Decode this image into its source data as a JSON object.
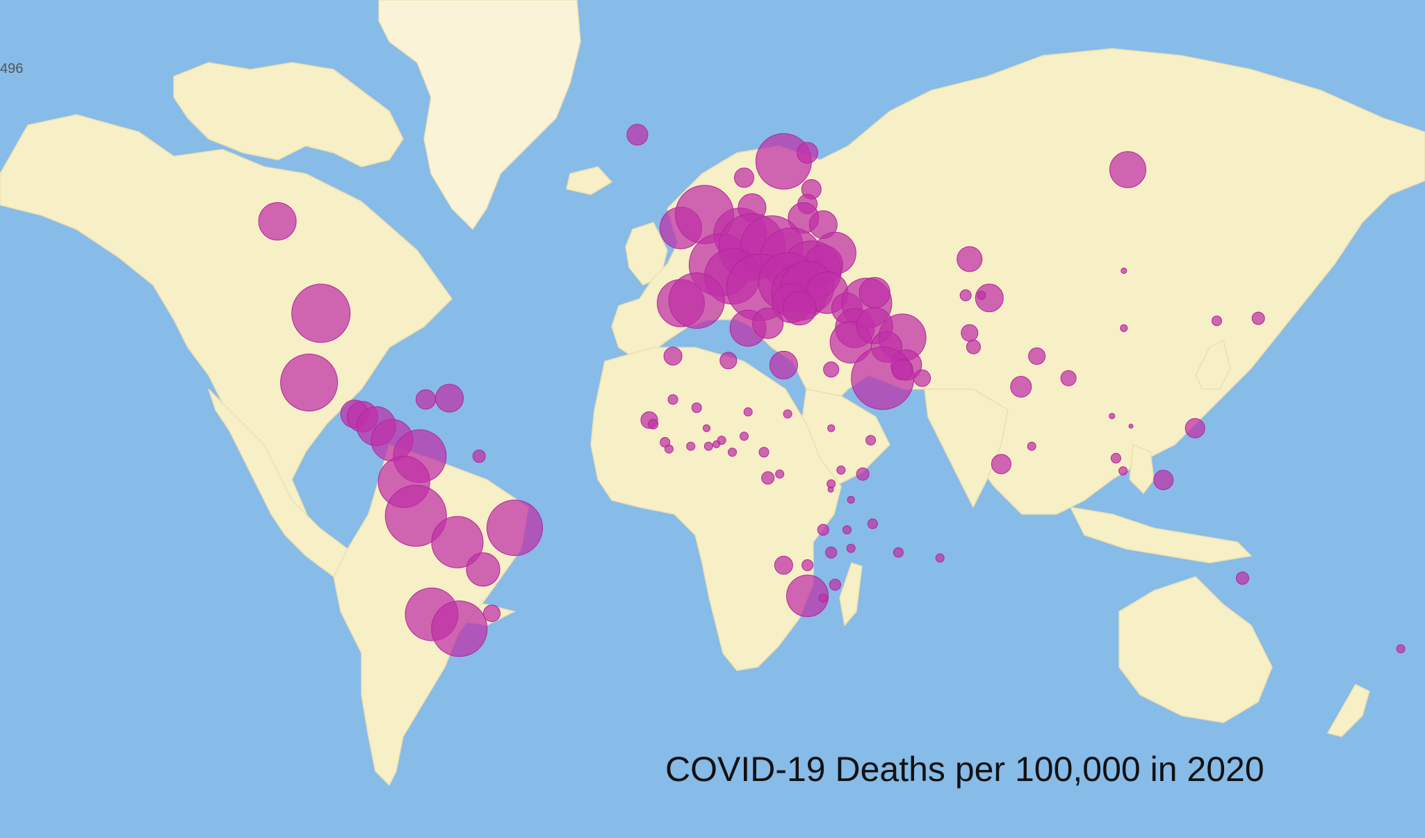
{
  "map": {
    "title": "COVID-19 Deaths per 100,000 in 2020",
    "corner_label": "496",
    "colors": {
      "ocean": "#87bbe8",
      "land": "#f7efc6",
      "bubble": "#bf2fa8"
    },
    "projection": "mercator",
    "bubbles": [
      {
        "lon": -110,
        "lat": 54,
        "r": 27
      },
      {
        "lon": -99,
        "lat": 38,
        "r": 42
      },
      {
        "lon": -102,
        "lat": 23,
        "r": 41
      },
      {
        "lon": -90.5,
        "lat": 15.5,
        "r": 20
      },
      {
        "lon": -88.5,
        "lat": 14.8,
        "r": 22
      },
      {
        "lon": -85,
        "lat": 12.5,
        "r": 28
      },
      {
        "lon": -81,
        "lat": 9,
        "r": 30
      },
      {
        "lon": -74,
        "lat": 5,
        "r": 38
      },
      {
        "lon": -78,
        "lat": -1.5,
        "r": 37
      },
      {
        "lon": -75,
        "lat": -10,
        "r": 44
      },
      {
        "lon": -64.5,
        "lat": -16.5,
        "r": 37
      },
      {
        "lon": -50,
        "lat": -13,
        "r": 40
      },
      {
        "lon": -58,
        "lat": -23,
        "r": 24
      },
      {
        "lon": -55.8,
        "lat": -32.8,
        "r": 12
      },
      {
        "lon": -71,
        "lat": -33,
        "r": 38
      },
      {
        "lon": -64,
        "lat": -36,
        "r": 40
      },
      {
        "lon": -72.5,
        "lat": 19,
        "r": 14
      },
      {
        "lon": -66.5,
        "lat": 19.3,
        "r": 20
      },
      {
        "lon": -59,
        "lat": 5,
        "r": 9
      },
      {
        "lon": -19,
        "lat": 65,
        "r": 15
      },
      {
        "lon": -8,
        "lat": 53,
        "r": 30
      },
      {
        "lon": -2,
        "lat": 55,
        "r": 42
      },
      {
        "lon": 7,
        "lat": 52,
        "r": 38
      },
      {
        "lon": 8,
        "lat": 60,
        "r": 14
      },
      {
        "lon": 10,
        "lat": 56,
        "r": 20
      },
      {
        "lon": 18,
        "lat": 62,
        "r": 40
      },
      {
        "lon": 24,
        "lat": 63,
        "r": 15
      },
      {
        "lon": 25,
        "lat": 58.5,
        "r": 14
      },
      {
        "lon": 24,
        "lat": 56.5,
        "r": 14
      },
      {
        "lon": 23,
        "lat": 54.5,
        "r": 22
      },
      {
        "lon": 28,
        "lat": 53.5,
        "r": 20
      },
      {
        "lon": 31,
        "lat": 49,
        "r": 30
      },
      {
        "lon": 2,
        "lat": 47,
        "r": 45
      },
      {
        "lon": 10,
        "lat": 50,
        "r": 48
      },
      {
        "lon": 15,
        "lat": 50,
        "r": 45
      },
      {
        "lon": 20,
        "lat": 48,
        "r": 45
      },
      {
        "lon": 25,
        "lat": 46,
        "r": 43
      },
      {
        "lon": 28,
        "lat": 47,
        "r": 28
      },
      {
        "lon": 5,
        "lat": 45,
        "r": 40
      },
      {
        "lon": 12,
        "lat": 43,
        "r": 48
      },
      {
        "lon": 19,
        "lat": 44,
        "r": 42
      },
      {
        "lon": 22,
        "lat": 42,
        "r": 40
      },
      {
        "lon": 24,
        "lat": 43,
        "r": 38
      },
      {
        "lon": 29,
        "lat": 42,
        "r": 30
      },
      {
        "lon": 20,
        "lat": 40,
        "r": 28
      },
      {
        "lon": 22,
        "lat": 39,
        "r": 24
      },
      {
        "lon": -8,
        "lat": 40,
        "r": 34
      },
      {
        "lon": -4,
        "lat": 40.5,
        "r": 40
      },
      {
        "lon": 9,
        "lat": 35,
        "r": 26
      },
      {
        "lon": 14,
        "lat": 36,
        "r": 22
      },
      {
        "lon": 34,
        "lat": 39,
        "r": 22
      },
      {
        "lon": 39,
        "lat": 40,
        "r": 36
      },
      {
        "lon": 41,
        "lat": 42,
        "r": 22
      },
      {
        "lon": 36,
        "lat": 35,
        "r": 28
      },
      {
        "lon": 35,
        "lat": 32,
        "r": 30
      },
      {
        "lon": 41,
        "lat": 35.5,
        "r": 26
      },
      {
        "lon": 48,
        "lat": 33,
        "r": 34
      },
      {
        "lon": 44,
        "lat": 31,
        "r": 22
      },
      {
        "lon": 49,
        "lat": 27,
        "r": 22
      },
      {
        "lon": 43,
        "lat": 24,
        "r": 45
      },
      {
        "lon": 48,
        "lat": 26,
        "r": 15
      },
      {
        "lon": 53,
        "lat": 24,
        "r": 12
      },
      {
        "lon": 65,
        "lat": 48,
        "r": 18
      },
      {
        "lon": 70,
        "lat": 41,
        "r": 20
      },
      {
        "lon": 64,
        "lat": 41.5,
        "r": 8
      },
      {
        "lon": 68,
        "lat": 41.5,
        "r": 6
      },
      {
        "lon": 65,
        "lat": 34,
        "r": 12
      },
      {
        "lon": 66,
        "lat": 31,
        "r": 10
      },
      {
        "lon": 82,
        "lat": 29,
        "r": 12
      },
      {
        "lon": 90,
        "lat": 24,
        "r": 11
      },
      {
        "lon": 78,
        "lat": 22,
        "r": 15
      },
      {
        "lon": 80.7,
        "lat": 7.5,
        "r": 6
      },
      {
        "lon": 73,
        "lat": 3,
        "r": 14
      },
      {
        "lon": 105,
        "lat": 61,
        "r": 26
      },
      {
        "lon": 104,
        "lat": 46,
        "r": 4
      },
      {
        "lon": 104,
        "lat": 35,
        "r": 5
      },
      {
        "lon": 127.5,
        "lat": 36.5,
        "r": 7
      },
      {
        "lon": 138,
        "lat": 37,
        "r": 9
      },
      {
        "lon": 101,
        "lat": 15,
        "r": 4
      },
      {
        "lon": 105.8,
        "lat": 12.5,
        "r": 3
      },
      {
        "lon": 122,
        "lat": 12,
        "r": 14
      },
      {
        "lon": 102,
        "lat": 4.5,
        "r": 7
      },
      {
        "lon": 103.8,
        "lat": 1.3,
        "r": 6
      },
      {
        "lon": 114,
        "lat": -1,
        "r": 14
      },
      {
        "lon": 134,
        "lat": -25,
        "r": 9
      },
      {
        "lon": 174,
        "lat": -40,
        "r": 6
      },
      {
        "lon": -10,
        "lat": 29,
        "r": 13
      },
      {
        "lon": 4,
        "lat": 28,
        "r": 12
      },
      {
        "lon": 18,
        "lat": 27,
        "r": 20
      },
      {
        "lon": 30,
        "lat": 26,
        "r": 11
      },
      {
        "lon": -16,
        "lat": 14,
        "r": 12
      },
      {
        "lon": -10,
        "lat": 19,
        "r": 7
      },
      {
        "lon": -4,
        "lat": 17,
        "r": 7
      },
      {
        "lon": 9,
        "lat": 16,
        "r": 6
      },
      {
        "lon": 19,
        "lat": 15.5,
        "r": 6
      },
      {
        "lon": 30,
        "lat": 12,
        "r": 5
      },
      {
        "lon": -15,
        "lat": 13,
        "r": 7
      },
      {
        "lon": -12,
        "lat": 8.5,
        "r": 7
      },
      {
        "lon": -11,
        "lat": 6.8,
        "r": 6
      },
      {
        "lon": -5.5,
        "lat": 7.5,
        "r": 6
      },
      {
        "lon": -1,
        "lat": 7.5,
        "r": 6
      },
      {
        "lon": 1,
        "lat": 8,
        "r": 5
      },
      {
        "lon": 2.3,
        "lat": 9,
        "r": 6
      },
      {
        "lon": -1.5,
        "lat": 12,
        "r": 5
      },
      {
        "lon": 8,
        "lat": 10,
        "r": 6
      },
      {
        "lon": 5,
        "lat": 6,
        "r": 6
      },
      {
        "lon": 13,
        "lat": 6,
        "r": 7
      },
      {
        "lon": 40,
        "lat": 9,
        "r": 7
      },
      {
        "lon": 14,
        "lat": -0.5,
        "r": 9
      },
      {
        "lon": 17,
        "lat": 0.5,
        "r": 6
      },
      {
        "lon": 38,
        "lat": 0.5,
        "r": 9
      },
      {
        "lon": 32.5,
        "lat": 1.5,
        "r": 6
      },
      {
        "lon": 30,
        "lat": -2,
        "r": 6
      },
      {
        "lon": 29.9,
        "lat": -3.4,
        "r": 4
      },
      {
        "lon": 35,
        "lat": -6,
        "r": 5
      },
      {
        "lon": 28,
        "lat": -13.5,
        "r": 8
      },
      {
        "lon": 34,
        "lat": -13.5,
        "r": 6
      },
      {
        "lon": 40.5,
        "lat": -12,
        "r": 7
      },
      {
        "lon": 47,
        "lat": -19,
        "r": 7
      },
      {
        "lon": 57.5,
        "lat": -20.3,
        "r": 6
      },
      {
        "lon": 30,
        "lat": -19,
        "r": 8
      },
      {
        "lon": 35,
        "lat": -18,
        "r": 6
      },
      {
        "lon": 18,
        "lat": -22,
        "r": 13
      },
      {
        "lon": 24,
        "lat": -22,
        "r": 8
      },
      {
        "lon": 24,
        "lat": -29,
        "r": 30
      },
      {
        "lon": 31,
        "lat": -26.5,
        "r": 8
      },
      {
        "lon": 28,
        "lat": -29.5,
        "r": 6
      }
    ]
  }
}
